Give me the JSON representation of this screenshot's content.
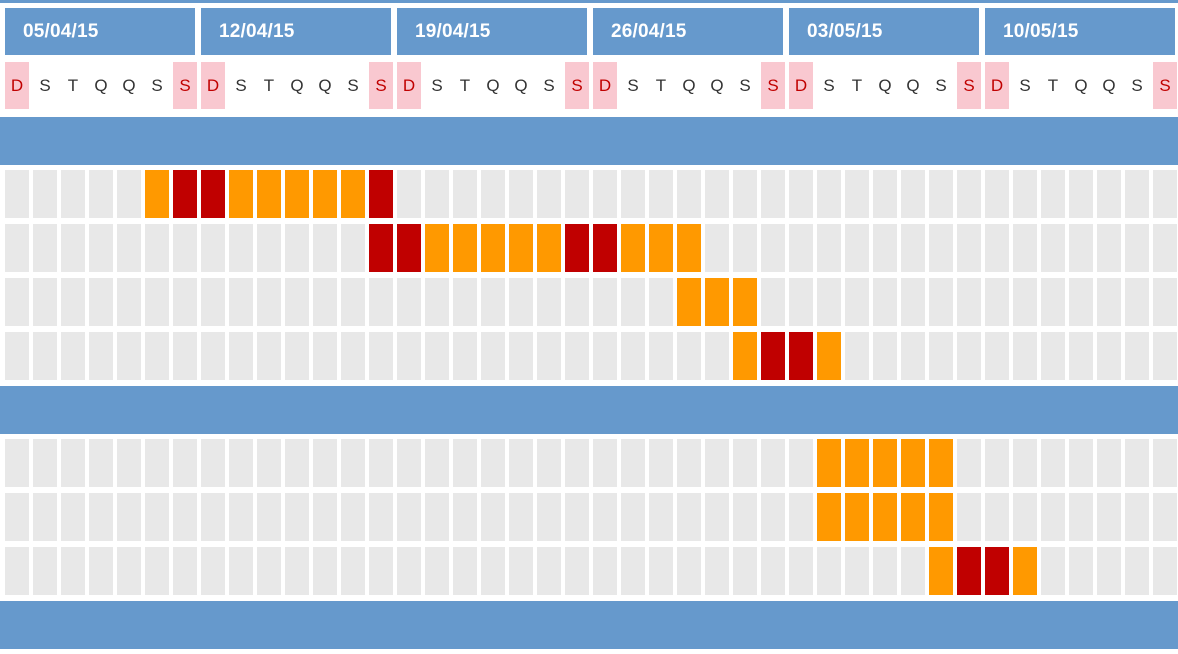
{
  "weeks": [
    {
      "label": "05/04/15"
    },
    {
      "label": "12/04/15"
    },
    {
      "label": "19/04/15"
    },
    {
      "label": "26/04/15"
    },
    {
      "label": "03/05/15"
    },
    {
      "label": "10/05/15"
    }
  ],
  "day_letters": [
    "D",
    "S",
    "T",
    "Q",
    "Q",
    "S",
    "S"
  ],
  "weekend_indices": [
    0,
    6
  ],
  "total_days": 42,
  "colors": {
    "header": "#6699cc",
    "weekend_header_bg": "#f9c8d0",
    "weekend_header_text": "#c00000",
    "empty_cell": "#e8e8e8",
    "work": "#ff9900",
    "weekend_work": "#c00000"
  },
  "rows": [
    {
      "type": "phase"
    },
    {
      "type": "task",
      "start_day": 5,
      "end_day": 13
    },
    {
      "type": "task",
      "start_day": 13,
      "end_day": 24
    },
    {
      "type": "task",
      "start_day": 24,
      "end_day": 26
    },
    {
      "type": "task",
      "start_day": 26,
      "end_day": 29
    },
    {
      "type": "phase"
    },
    {
      "type": "task",
      "start_day": 29,
      "end_day": 33
    },
    {
      "type": "task",
      "start_day": 29,
      "end_day": 33
    },
    {
      "type": "task",
      "start_day": 33,
      "end_day": 36
    },
    {
      "type": "phase"
    }
  ]
}
